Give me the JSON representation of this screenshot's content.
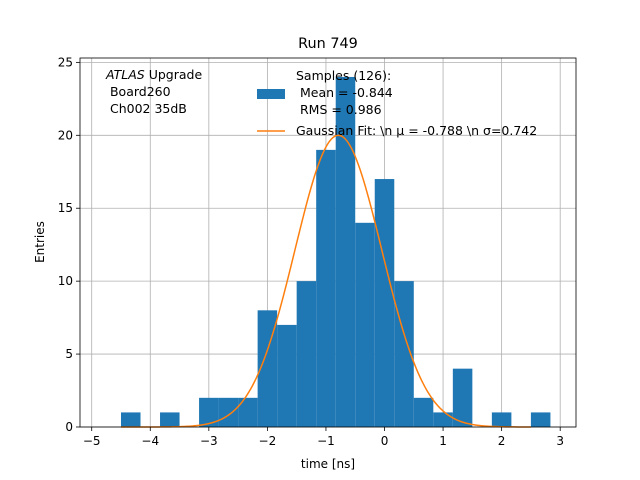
{
  "chart_data": {
    "type": "bar",
    "title": "Run 749",
    "xlabel": "time [ns]",
    "ylabel": "Entries",
    "xlim": [
      -5.2,
      3.27
    ],
    "ylim": [
      0,
      25.3
    ],
    "xticks": [
      -5,
      -4,
      -3,
      -2,
      -1,
      0,
      1,
      2,
      3
    ],
    "yticks": [
      0,
      5,
      10,
      15,
      20,
      25
    ],
    "grid": true,
    "annotation": {
      "italic": "ATLAS",
      "rest": " Upgrade",
      "line2": " Board260",
      "line3": " Ch002 35dB"
    },
    "legend": {
      "position": "top-right",
      "entries": [
        {
          "name": "samples",
          "lines": [
            "Samples (126):",
            " Mean = -0.844",
            " RMS = 0.986"
          ],
          "color": "#1f77b4",
          "kind": "patch"
        },
        {
          "name": "gaussian-fit",
          "lines": [
            "Gaussian Fit: \\n μ = -0.788 \\n σ=0.742"
          ],
          "color": "#ff7f0e",
          "kind": "line"
        }
      ]
    },
    "histogram": {
      "series_name": "Samples",
      "color": "#1f77b4",
      "bin_width": 0.3333,
      "bins": [
        {
          "x0": -4.5,
          "count": 1
        },
        {
          "x0": -4.1667,
          "count": 0
        },
        {
          "x0": -3.8333,
          "count": 1
        },
        {
          "x0": -3.5,
          "count": 0
        },
        {
          "x0": -3.1667,
          "count": 2
        },
        {
          "x0": -2.8333,
          "count": 2
        },
        {
          "x0": -2.5,
          "count": 2
        },
        {
          "x0": -2.1667,
          "count": 8
        },
        {
          "x0": -1.8333,
          "count": 7
        },
        {
          "x0": -1.5,
          "count": 10
        },
        {
          "x0": -1.1667,
          "count": 19
        },
        {
          "x0": -0.8333,
          "count": 24
        },
        {
          "x0": -0.5,
          "count": 14
        },
        {
          "x0": -0.1667,
          "count": 17
        },
        {
          "x0": 0.1667,
          "count": 10
        },
        {
          "x0": 0.5,
          "count": 2
        },
        {
          "x0": 0.8333,
          "count": 1
        },
        {
          "x0": 1.1667,
          "count": 4
        },
        {
          "x0": 1.5,
          "count": 0
        },
        {
          "x0": 1.8333,
          "count": 1
        },
        {
          "x0": 2.1667,
          "count": 0
        },
        {
          "x0": 2.5,
          "count": 1
        }
      ]
    },
    "fit": {
      "series_name": "Gaussian Fit",
      "color": "#ff7f0e",
      "amplitude": 20.0,
      "mu": -0.788,
      "sigma": 0.742,
      "x_range": [
        -4.5,
        2.5
      ]
    }
  }
}
